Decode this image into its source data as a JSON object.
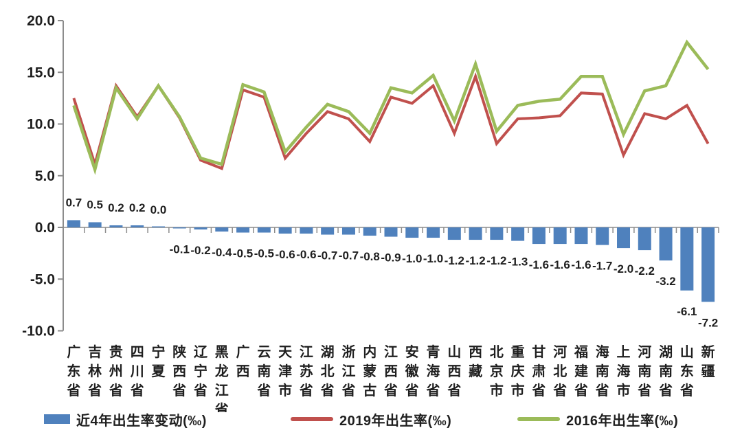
{
  "chart_data": {
    "type": "combo",
    "title": "",
    "xlabel": "",
    "ylabel": "",
    "grid": false,
    "legend_position": "bottom",
    "y_axis": {
      "min": -10,
      "max": 20,
      "step": 5,
      "tick_labels": [
        "20.0",
        "15.0",
        "10.0",
        "5.0",
        "0.0",
        "-5.0",
        "-10.0"
      ]
    },
    "categories": [
      "广东省",
      "吉林省",
      "贵州省",
      "四川省",
      "宁夏",
      "陕西省",
      "辽宁省",
      "黑龙江省",
      "广西",
      "云南省",
      "天津市",
      "江苏省",
      "湖北省",
      "浙江省",
      "内蒙古",
      "江西省",
      "安徽省",
      "青海省",
      "山西省",
      "西藏",
      "北京市",
      "重庆市",
      "甘肃省",
      "河北省",
      "福建省",
      "海南省",
      "上海市",
      "河南省",
      "湖南省",
      "山东省",
      "新疆"
    ],
    "series": [
      {
        "name": "近4年出生率变动(‰)",
        "type": "bar",
        "color": "#4F81BD",
        "values": [
          0.7,
          0.5,
          0.2,
          0.2,
          0.0,
          -0.1,
          -0.2,
          -0.4,
          -0.5,
          -0.5,
          -0.6,
          -0.6,
          -0.7,
          -0.7,
          -0.8,
          -0.9,
          -1.0,
          -1.0,
          -1.2,
          -1.2,
          -1.2,
          -1.3,
          -1.6,
          -1.6,
          -1.6,
          -1.7,
          -2.0,
          -2.2,
          -3.2,
          -6.1,
          -7.2
        ],
        "labels": [
          "0.7",
          "0.5",
          "0.2",
          "0.2",
          "0.0",
          "-0.1",
          "-0.2",
          "-0.4",
          "-0.5",
          "-0.5",
          "-0.6",
          "-0.6",
          "-0.7",
          "-0.7",
          "-0.8",
          "-0.9",
          "-1.0",
          "-1.0",
          "-1.2",
          "-1.2",
          "-1.2",
          "-1.3",
          "-1.6",
          "-1.6",
          "-1.6",
          "-1.7",
          "-2.0",
          "-2.2",
          "-3.2",
          "-6.1",
          "-7.2"
        ]
      },
      {
        "name": "2019年出生率(‰)",
        "type": "line",
        "color": "#C0504D",
        "values": [
          12.5,
          6.1,
          13.7,
          10.7,
          13.7,
          10.6,
          6.5,
          5.7,
          13.3,
          12.6,
          6.7,
          9.1,
          11.2,
          10.5,
          8.3,
          12.6,
          12.0,
          13.7,
          9.1,
          14.6,
          8.1,
          10.5,
          10.6,
          10.8,
          13.0,
          12.9,
          7.0,
          11.0,
          10.5,
          11.8,
          8.1
        ]
      },
      {
        "name": "2016年出生率(‰)",
        "type": "line",
        "color": "#9BBB59",
        "values": [
          11.8,
          5.6,
          13.5,
          10.5,
          13.7,
          10.7,
          6.7,
          6.1,
          13.8,
          13.1,
          7.3,
          9.7,
          11.9,
          11.2,
          9.1,
          13.5,
          13.0,
          14.7,
          10.3,
          15.8,
          9.3,
          11.8,
          12.2,
          12.4,
          14.6,
          14.6,
          9.0,
          13.2,
          13.7,
          17.9,
          15.3
        ]
      }
    ],
    "colors": {
      "axis": "#8C8C8C",
      "text": "#1F1F1F",
      "background": "#FFFFFF"
    }
  }
}
